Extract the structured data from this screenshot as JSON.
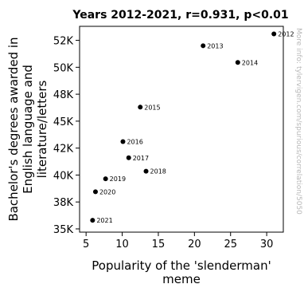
{
  "chart_data": {
    "type": "scatter",
    "title": "Years 2012-2021, r=0.931, p<0.01",
    "xlabel": [
      "Popularity of the 'slenderman'",
      "meme"
    ],
    "ylabel": [
      "Bachelor's degrees awarded in",
      "English language and",
      "literature/letters"
    ],
    "xlim": [
      4.1,
      32.3
    ],
    "ylim": [
      34700,
      53800
    ],
    "x_ticks": [
      5,
      10,
      15,
      20,
      25,
      30
    ],
    "x_tick_labels": [
      "5",
      "10",
      "15",
      "20",
      "25",
      "30"
    ],
    "y_ticks": [
      35000,
      37500,
      40000,
      42500,
      45000,
      47500,
      50000,
      52500
    ],
    "y_tick_labels": [
      "35K",
      "38K",
      "40K",
      "42K",
      "45K",
      "48K",
      "50K",
      "52K"
    ],
    "grid": false,
    "points": [
      {
        "label": "2012",
        "x": 31.0,
        "y": 53100
      },
      {
        "label": "2013",
        "x": 21.2,
        "y": 52000
      },
      {
        "label": "2014",
        "x": 26.0,
        "y": 50450
      },
      {
        "label": "2015",
        "x": 12.5,
        "y": 46300
      },
      {
        "label": "2016",
        "x": 10.1,
        "y": 43100
      },
      {
        "label": "2017",
        "x": 10.9,
        "y": 41600
      },
      {
        "label": "2018",
        "x": 13.3,
        "y": 40350
      },
      {
        "label": "2019",
        "x": 7.7,
        "y": 39650
      },
      {
        "label": "2020",
        "x": 6.3,
        "y": 38450
      },
      {
        "label": "2021",
        "x": 5.9,
        "y": 35800
      }
    ]
  },
  "watermark": "More info: tylervigen.com/spurious/correlation/5050"
}
